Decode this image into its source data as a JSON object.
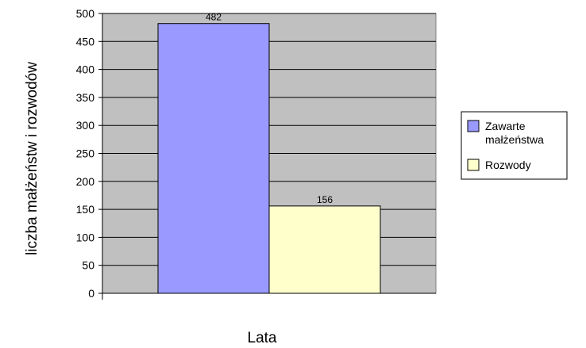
{
  "chart_data": {
    "type": "bar",
    "title": "",
    "xlabel": "Lata",
    "ylabel": "liczba małżeństw i rozwodów",
    "ylim": [
      0,
      500
    ],
    "y_ticks": [
      0,
      50,
      100,
      150,
      200,
      250,
      300,
      350,
      400,
      450,
      500
    ],
    "grid": true,
    "legend_position": "right",
    "series": [
      {
        "name": "Zawarte małżeństwa",
        "legend_lines": [
          "Zawarte",
          "małżeństwa"
        ],
        "values": [
          482
        ],
        "color": "#9999ff"
      },
      {
        "name": "Rozwody",
        "legend_lines": [
          "Rozwody"
        ],
        "values": [
          156
        ],
        "color": "#ffffcc"
      }
    ],
    "plot_background": "#c0c0c0"
  }
}
